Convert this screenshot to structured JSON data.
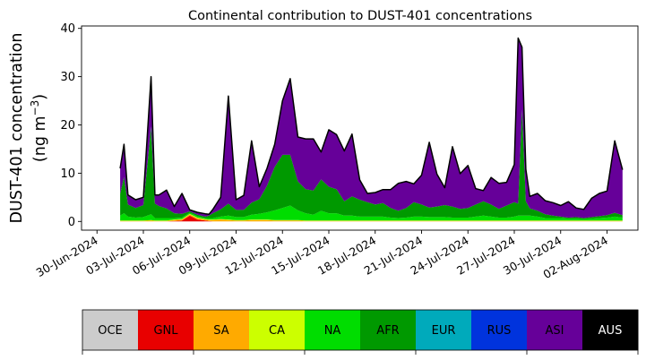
{
  "chart_data": {
    "type": "area",
    "stacked": true,
    "title": "Continental contribution to DUST-401 concentrations",
    "ylabel_line1": "DUST-401 concentration",
    "ylabel_line2_prefix": "(ng m",
    "ylabel_line2_exp": "−3",
    "ylabel_line2_suffix": ")",
    "xlabel": "",
    "ylim": [
      -1.8,
      40.5
    ],
    "y_ticks": [
      0,
      10,
      20,
      30,
      40
    ],
    "x_range": [
      "2024-06-29",
      "2024-08-04"
    ],
    "x_tick_labels": [
      "30-Jun-2024",
      "03-Jul-2024",
      "06-Jul-2024",
      "09-Jul-2024",
      "12-Jul-2024",
      "15-Jul-2024",
      "18-Jul-2024",
      "21-Jul-2024",
      "24-Jul-2024",
      "27-Jul-2024",
      "30-Jul-2024",
      "02-Aug-2024"
    ],
    "x_tick_dates": [
      "2024-06-30",
      "2024-07-03",
      "2024-07-06",
      "2024-07-09",
      "2024-07-12",
      "2024-07-15",
      "2024-07-18",
      "2024-07-21",
      "2024-07-24",
      "2024-07-27",
      "2024-07-30",
      "2024-08-02"
    ],
    "x_tick_rotation_deg": 30,
    "grid": false,
    "legend_placement": "bottom colorbar",
    "x": [
      "2024-07-01 12:00",
      "2024-07-01 18:00",
      "2024-07-02 00:00",
      "2024-07-02 12:00",
      "2024-07-03 00:00",
      "2024-07-03 12:00",
      "2024-07-03 18:00",
      "2024-07-04 00:00",
      "2024-07-04 12:00",
      "2024-07-05 00:00",
      "2024-07-05 12:00",
      "2024-07-06 00:00",
      "2024-07-06 12:00",
      "2024-07-07 00:00",
      "2024-07-07 06:00",
      "2024-07-07 12:00",
      "2024-07-08 00:00",
      "2024-07-08 12:00",
      "2024-07-09 00:00",
      "2024-07-09 12:00",
      "2024-07-10 00:00",
      "2024-07-10 12:00",
      "2024-07-11 00:00",
      "2024-07-11 12:00",
      "2024-07-12 00:00",
      "2024-07-12 12:00",
      "2024-07-13 00:00",
      "2024-07-13 12:00",
      "2024-07-14 00:00",
      "2024-07-14 12:00",
      "2024-07-15 00:00",
      "2024-07-15 12:00",
      "2024-07-16 00:00",
      "2024-07-16 12:00",
      "2024-07-17 00:00",
      "2024-07-17 12:00",
      "2024-07-18 00:00",
      "2024-07-18 12:00",
      "2024-07-19 00:00",
      "2024-07-19 12:00",
      "2024-07-20 00:00",
      "2024-07-20 12:00",
      "2024-07-21 00:00",
      "2024-07-21 12:00",
      "2024-07-22 00:00",
      "2024-07-22 12:00",
      "2024-07-23 00:00",
      "2024-07-23 12:00",
      "2024-07-24 00:00",
      "2024-07-24 12:00",
      "2024-07-25 00:00",
      "2024-07-25 12:00",
      "2024-07-26 00:00",
      "2024-07-26 12:00",
      "2024-07-27 00:00",
      "2024-07-27 06:00",
      "2024-07-27 12:00",
      "2024-07-27 18:00",
      "2024-07-28 00:00",
      "2024-07-28 12:00",
      "2024-07-29 00:00",
      "2024-07-29 12:00",
      "2024-07-30 00:00",
      "2024-07-30 12:00",
      "2024-07-31 00:00",
      "2024-07-31 12:00",
      "2024-08-01 00:00",
      "2024-08-01 12:00",
      "2024-08-02 00:00",
      "2024-08-02 12:00",
      "2024-08-03 00:00"
    ],
    "series": [
      {
        "name": "OCE",
        "color": "#cccccc",
        "values": [
          0,
          0,
          0,
          0,
          0,
          0,
          0,
          0,
          0,
          0,
          0,
          0,
          0,
          0,
          0,
          0,
          0,
          0,
          0,
          0,
          0,
          0,
          0,
          0,
          0,
          0,
          0,
          0,
          0,
          0,
          0,
          0,
          0,
          0,
          0,
          0,
          0,
          0,
          0,
          0,
          0,
          0,
          0,
          0,
          0,
          0,
          0,
          0,
          0,
          0,
          0,
          0,
          0,
          0,
          0,
          0,
          0,
          0,
          0,
          0,
          0,
          0,
          0,
          0,
          0,
          0,
          0,
          0,
          0,
          0,
          0
        ]
      },
      {
        "name": "GNL",
        "color": "#e80000",
        "values": [
          0,
          0,
          0,
          0,
          0,
          0,
          0,
          0,
          0,
          0.1,
          0.2,
          1.2,
          0.4,
          0.2,
          0.1,
          0,
          0,
          0,
          0,
          0,
          0,
          0,
          0,
          0,
          0,
          0,
          0,
          0,
          0,
          0,
          0,
          0,
          0,
          0,
          0,
          0,
          0,
          0,
          0,
          0,
          0,
          0,
          0,
          0,
          0,
          0,
          0,
          0,
          0,
          0,
          0,
          0,
          0,
          0,
          0,
          0,
          0,
          0,
          0,
          0,
          0,
          0,
          0,
          0,
          0,
          0,
          0,
          0,
          0,
          0,
          0
        ]
      },
      {
        "name": "SA",
        "color": "#ffaa00",
        "values": [
          0.1,
          0.1,
          0.1,
          0.1,
          0.1,
          0.2,
          0.1,
          0.1,
          0.1,
          0.2,
          0.2,
          0.3,
          0.3,
          0.2,
          0.2,
          0.3,
          0.4,
          0.3,
          0.2,
          0.2,
          0.3,
          0.3,
          0.3,
          0.2,
          0.2,
          0.2,
          0.2,
          0.1,
          0.1,
          0.1,
          0.1,
          0.1,
          0.1,
          0.1,
          0.1,
          0.1,
          0.1,
          0.1,
          0.1,
          0.1,
          0.1,
          0.1,
          0.1,
          0.1,
          0.1,
          0.1,
          0.1,
          0.1,
          0.1,
          0.1,
          0.1,
          0.1,
          0.1,
          0.1,
          0.1,
          0.1,
          0.1,
          0.1,
          0.1,
          0.1,
          0.1,
          0.1,
          0.1,
          0.1,
          0.1,
          0.1,
          0.1,
          0.1,
          0.1,
          0.1,
          0.1
        ]
      },
      {
        "name": "CA",
        "color": "#ccff00",
        "values": [
          0.1,
          0.1,
          0.1,
          0.1,
          0.1,
          0.1,
          0.1,
          0.1,
          0.1,
          0.1,
          0.1,
          0.1,
          0.1,
          0.1,
          0.1,
          0.1,
          0.1,
          0.1,
          0.1,
          0.1,
          0.1,
          0.1,
          0.1,
          0.1,
          0.1,
          0.1,
          0.1,
          0.1,
          0.1,
          0.1,
          0.1,
          0.1,
          0.1,
          0.1,
          0.1,
          0.1,
          0.1,
          0.1,
          0.1,
          0.1,
          0.1,
          0.1,
          0.1,
          0.1,
          0.1,
          0.1,
          0.1,
          0.1,
          0.1,
          0.1,
          0.1,
          0.1,
          0.1,
          0.1,
          0.1,
          0.1,
          0.1,
          0.1,
          0.1,
          0.1,
          0.1,
          0.1,
          0.1,
          0.1,
          0.1,
          0.1,
          0.1,
          0.1,
          0.1,
          0.1,
          0.1
        ]
      },
      {
        "name": "NA",
        "color": "#00dd00",
        "values": [
          1.0,
          1.5,
          0.8,
          0.6,
          0.7,
          1.2,
          0.5,
          0.5,
          0.5,
          0.3,
          0.3,
          0.2,
          0.3,
          0.2,
          0.3,
          0.3,
          0.5,
          0.8,
          0.6,
          0.6,
          1.0,
          1.2,
          1.5,
          2.0,
          2.5,
          3.0,
          2.0,
          1.5,
          1.2,
          2.0,
          1.5,
          1.5,
          1.0,
          1.0,
          0.8,
          0.8,
          0.8,
          0.8,
          0.6,
          0.5,
          0.6,
          0.8,
          0.8,
          0.7,
          0.7,
          0.7,
          0.6,
          0.6,
          0.6,
          0.8,
          1.0,
          0.8,
          0.6,
          0.6,
          0.8,
          1.0,
          1.0,
          1.0,
          1.0,
          0.8,
          0.5,
          0.5,
          0.5,
          0.4,
          0.4,
          0.3,
          0.4,
          0.5,
          0.6,
          0.8,
          0.6
        ]
      },
      {
        "name": "AFR",
        "color": "#009900",
        "values": [
          4.5,
          7.5,
          2.5,
          2.0,
          2.5,
          18.0,
          3.0,
          2.5,
          2.0,
          1.0,
          0.8,
          0.3,
          0.3,
          0.3,
          0.5,
          1.0,
          1.5,
          2.5,
          1.5,
          1.5,
          2.5,
          3.0,
          5.5,
          9.0,
          11.0,
          10.5,
          6.0,
          5.0,
          5.0,
          6.5,
          5.5,
          5.0,
          3.0,
          4.0,
          3.5,
          3.0,
          2.5,
          2.8,
          2.0,
          1.5,
          2.0,
          3.0,
          2.5,
          2.0,
          2.2,
          2.5,
          2.3,
          1.8,
          2.0,
          2.5,
          3.0,
          2.5,
          1.8,
          2.5,
          3.0,
          2.5,
          22.0,
          3.0,
          1.5,
          1.2,
          0.8,
          0.5,
          0.3,
          0.2,
          0.3,
          0.2,
          0.3,
          0.4,
          0.5,
          0.8,
          0.5
        ]
      },
      {
        "name": "EUR",
        "color": "#00aabb",
        "values": [
          0,
          0,
          0,
          0,
          0,
          0.2,
          0,
          0,
          0,
          0,
          0,
          0,
          0,
          0,
          0,
          0,
          0,
          0,
          0,
          0,
          0,
          0,
          0,
          0,
          0,
          0,
          0,
          0,
          0,
          0,
          0,
          0,
          0,
          0,
          0,
          0,
          0,
          0,
          0,
          0,
          0,
          0,
          0,
          0,
          0,
          0,
          0,
          0,
          0,
          0,
          0,
          0,
          0,
          0,
          0,
          0,
          0,
          0,
          0,
          0,
          0,
          0,
          0,
          0,
          0,
          0,
          0,
          0,
          0,
          0,
          0
        ]
      },
      {
        "name": "RUS",
        "color": "#0033dd",
        "values": [
          0,
          0,
          0,
          0,
          0,
          0,
          0,
          0,
          0,
          0,
          0,
          0,
          0,
          0,
          0,
          0,
          0,
          0,
          0,
          0,
          0,
          0,
          0,
          0,
          0,
          0,
          0,
          0,
          0,
          0,
          0,
          0,
          0,
          0,
          0,
          0,
          0,
          0,
          0,
          0,
          0,
          0,
          0,
          0,
          0,
          0,
          0,
          0,
          0,
          0,
          0,
          0,
          0,
          0,
          0,
          0,
          0,
          0,
          0,
          0,
          0,
          0,
          0,
          0,
          0,
          0,
          0,
          0,
          0,
          0,
          0
        ]
      },
      {
        "name": "ASI",
        "color": "#660099",
        "values": [
          5.3,
          6.8,
          2.0,
          1.7,
          1.6,
          10.3,
          1.8,
          2.3,
          3.8,
          1.4,
          4.2,
          0.3,
          0.5,
          0.6,
          0.3,
          0.8,
          2.5,
          22.3,
          2.1,
          3.0,
          12.8,
          2.6,
          3.6,
          4.7,
          11.2,
          15.8,
          9.2,
          10.4,
          10.7,
          5.7,
          11.8,
          11.3,
          10.4,
          12.9,
          4.1,
          1.8,
          2.5,
          2.8,
          3.8,
          5.7,
          5.5,
          3.8,
          6.1,
          13.5,
          6.7,
          3.6,
          12.4,
          7.3,
          8.8,
          3.3,
          2.2,
          5.6,
          5.3,
          4.8,
          7.8,
          34.3,
          12.9,
          6.6,
          2.5,
          3.6,
          2.8,
          2.7,
          2.3,
          3.3,
          1.9,
          1.8,
          3.9,
          4.7,
          5.0,
          14.9,
          9.4
        ]
      },
      {
        "name": "AUS",
        "color": "#000000",
        "values": [
          0,
          0,
          0,
          0,
          0,
          0,
          0,
          0,
          0,
          0,
          0,
          0,
          0,
          0,
          0,
          0,
          0,
          0,
          0,
          0,
          0,
          0,
          0,
          0,
          0,
          0,
          0,
          0,
          0,
          0,
          0,
          0,
          0,
          0,
          0,
          0,
          0,
          0,
          0,
          0,
          0,
          0,
          0,
          0,
          0,
          0,
          0,
          0,
          0,
          0,
          0,
          0,
          0,
          0,
          0,
          0,
          0,
          0,
          0,
          0,
          0,
          0,
          0,
          0,
          0,
          0,
          0,
          0,
          0,
          0,
          0
        ]
      }
    ],
    "total_outline_color": "#000000",
    "legend": [
      {
        "label": "OCE",
        "color": "#cccccc",
        "text_color": "#000000"
      },
      {
        "label": "GNL",
        "color": "#e80000",
        "text_color": "#000000"
      },
      {
        "label": "SA",
        "color": "#ffaa00",
        "text_color": "#000000"
      },
      {
        "label": "CA",
        "color": "#ccff00",
        "text_color": "#000000"
      },
      {
        "label": "NA",
        "color": "#00dd00",
        "text_color": "#000000"
      },
      {
        "label": "AFR",
        "color": "#009900",
        "text_color": "#000000"
      },
      {
        "label": "EUR",
        "color": "#00aabb",
        "text_color": "#000000"
      },
      {
        "label": "RUS",
        "color": "#0033dd",
        "text_color": "#000000"
      },
      {
        "label": "ASI",
        "color": "#660099",
        "text_color": "#000000"
      },
      {
        "label": "AUS",
        "color": "#000000",
        "text_color": "#ffffff"
      }
    ]
  }
}
